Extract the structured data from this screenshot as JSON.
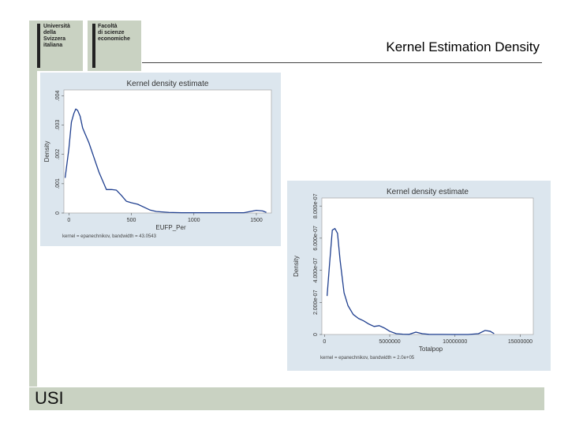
{
  "logos": {
    "university": "Università\ndella\nSvizzera\nitaliana",
    "faculty": "Facoltà\ndi scienze\neconomiche"
  },
  "slide": {
    "title": "Kernel Estimation Density",
    "footer_label": "USI"
  },
  "chart_data": [
    {
      "type": "line",
      "title": "Kernel density estimate",
      "xlabel": "EUFP_Per",
      "ylabel": "Density",
      "note": "kernel = epanechnikov, bandwidth = 43.0543",
      "xlim": [
        -40,
        1620
      ],
      "ylim": [
        0,
        0.0042
      ],
      "xticks": [
        0,
        500,
        1000,
        1500
      ],
      "xtick_labels": [
        "0",
        "500",
        "1000",
        "1500"
      ],
      "yticks": [
        0,
        0.001,
        0.002,
        0.003,
        0.004
      ],
      "ytick_labels": [
        "0",
        ".001",
        ".002",
        ".003",
        ".004"
      ],
      "series": [
        {
          "x": [
            -30,
            0,
            20,
            40,
            55,
            70,
            90,
            110,
            130,
            160,
            200,
            240,
            270,
            300,
            340,
            380,
            420,
            460,
            500,
            550,
            600,
            650,
            700,
            800,
            900,
            1000,
            1100,
            1200,
            1300,
            1400,
            1450,
            1500,
            1550,
            1580
          ],
          "y": [
            0.0012,
            0.0022,
            0.0031,
            0.0034,
            0.00355,
            0.0035,
            0.0033,
            0.0029,
            0.0027,
            0.0024,
            0.0019,
            0.0014,
            0.0011,
            0.0008,
            0.0008,
            0.00078,
            0.0006,
            0.0004,
            0.00035,
            0.0003,
            0.0002,
            0.0001,
            5e-05,
            2e-05,
            1e-05,
            1e-05,
            1e-05,
            1e-05,
            1e-05,
            1e-05,
            5e-05,
            9e-05,
            7e-05,
            2e-05
          ]
        }
      ]
    },
    {
      "type": "line",
      "title": "Kernel density estimate",
      "xlabel": "Totalpop",
      "ylabel": "Density",
      "note": "kernel = epanechnikov, bandwidth = 2.0e+05",
      "xlim": [
        -200000,
        16000000
      ],
      "ylim": [
        0,
        8.5e-07
      ],
      "xticks": [
        0,
        5000000,
        10000000,
        15000000
      ],
      "xtick_labels": [
        "0",
        "5000000",
        "10000000",
        "15000000"
      ],
      "yticks": [
        0,
        2e-07,
        4e-07,
        6e-07,
        8e-07
      ],
      "ytick_labels": [
        "0",
        "2.000e-07",
        "4.000e-07",
        "6.000e-07",
        "8.000e-07"
      ],
      "series": [
        {
          "x": [
            200000,
            400000,
            600000,
            800000,
            1000000,
            1200000,
            1500000,
            1800000,
            2200000,
            2600000,
            3000000,
            3400000,
            3800000,
            4200000,
            4600000,
            5000000,
            5500000,
            6000000,
            6500000,
            7000000,
            7500000,
            8000000,
            9000000,
            10000000,
            11000000,
            11800000,
            12300000,
            12700000,
            13000000
          ],
          "y": [
            2.4e-07,
            4.5e-07,
            6.5e-07,
            6.6e-07,
            6.3e-07,
            4.6e-07,
            2.6e-07,
            1.8e-07,
            1.25e-07,
            1e-07,
            8.5e-08,
            6.5e-08,
            5e-08,
            5.5e-08,
            4e-08,
            2e-08,
            5e-09,
            2e-09,
            1e-09,
            1.5e-08,
            5e-09,
            1e-09,
            5e-10,
            1e-10,
            1e-10,
            5e-09,
            2.5e-08,
            2e-08,
            5e-09
          ]
        }
      ]
    }
  ]
}
